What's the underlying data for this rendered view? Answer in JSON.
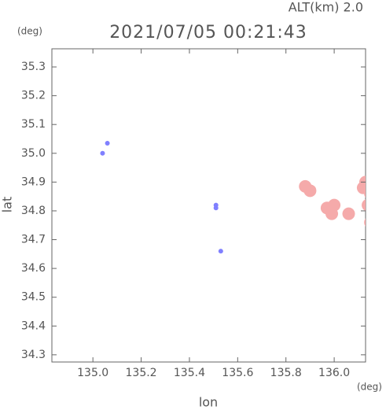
{
  "chart_data": {
    "type": "scatter",
    "title": "2021/07/05 00:21:43",
    "subtitle": "ALT(km) 2.0",
    "x_label": "lon",
    "x_unit": "(deg)",
    "y_label": "lat",
    "y_unit": "(deg)",
    "xlim": [
      134.83,
      136.13
    ],
    "ylim": [
      34.275,
      35.363
    ],
    "xticks": [
      {
        "value": 135.0,
        "label": "135.0"
      },
      135.2,
      135.4,
      135.6,
      135.8,
      {
        "value": 136.0,
        "label": "136.0"
      }
    ],
    "yticks": [
      35.3,
      35.2,
      35.1,
      {
        "value": 35.0,
        "label": "35.0"
      },
      34.9,
      34.8,
      34.7,
      34.6,
      34.5,
      34.4,
      34.3
    ],
    "grid": false,
    "series": [
      {
        "color": "#f5aaaa",
        "size": 8,
        "x": [
          135.88,
          135.9,
          135.97,
          135.99,
          136.0,
          136.06,
          136.12,
          136.15,
          136.14,
          136.16,
          136.15,
          136.13
        ],
        "y": [
          34.885,
          34.87,
          34.81,
          34.79,
          34.82,
          34.79,
          34.88,
          34.86,
          34.82,
          34.78,
          34.76,
          34.9
        ]
      },
      {
        "color": "#8080ff",
        "size": 3,
        "x": [
          135.06,
          135.04,
          135.51,
          135.51,
          135.53
        ],
        "y": [
          35.035,
          35.0,
          34.82,
          34.81,
          34.66
        ]
      }
    ]
  }
}
